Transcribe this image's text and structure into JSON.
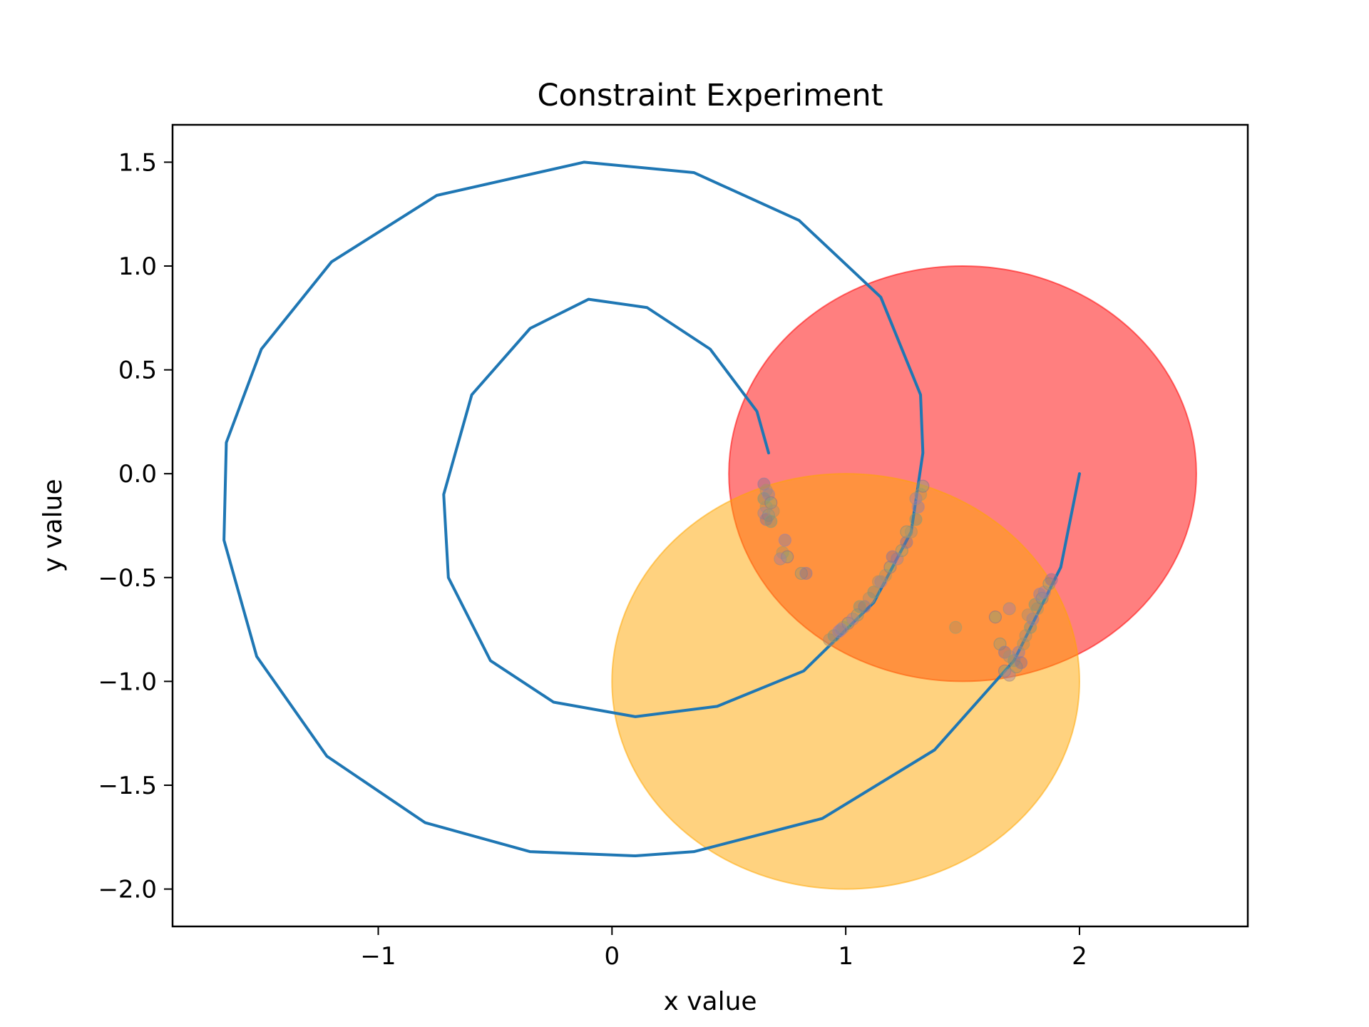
{
  "chart_data": {
    "type": "scatter",
    "title": "Constraint Experiment",
    "xlabel": "x value",
    "ylabel": "y value",
    "xlim": [
      -1.88,
      2.72
    ],
    "ylim": [
      -2.18,
      1.68
    ],
    "xticks": [
      {
        "value": -1,
        "label": "−1"
      },
      {
        "value": 0,
        "label": "0"
      },
      {
        "value": 1,
        "label": "1"
      },
      {
        "value": 2,
        "label": "2"
      }
    ],
    "yticks": [
      {
        "value": 1.5,
        "label": "1.5"
      },
      {
        "value": 1.0,
        "label": "1.0"
      },
      {
        "value": 0.5,
        "label": "0.5"
      },
      {
        "value": 0.0,
        "label": "0.0"
      },
      {
        "value": -0.5,
        "label": "−0.5"
      },
      {
        "value": -1.0,
        "label": "−1.0"
      },
      {
        "value": -1.5,
        "label": "−1.5"
      },
      {
        "value": -2.0,
        "label": "−2.0"
      }
    ],
    "grid": false,
    "legend": "none",
    "regions": [
      {
        "center": [
          1.5,
          0.0
        ],
        "radius": [
          1.0,
          1.0
        ],
        "fill": "#ff0000",
        "fill_opacity": 0.5
      },
      {
        "center": [
          1.0,
          -1.0
        ],
        "radius": [
          1.0,
          1.0
        ],
        "fill": "#ffa500",
        "fill_opacity": 0.5
      }
    ],
    "spiral": {
      "color": "#1f77b4",
      "start": [
        2.0,
        0.0
      ],
      "end": [
        0.67,
        0.1
      ],
      "points": [
        [
          2.0,
          0.0
        ],
        [
          1.92,
          -0.45
        ],
        [
          1.72,
          -0.9
        ],
        [
          1.38,
          -1.33
        ],
        [
          0.9,
          -1.66
        ],
        [
          0.35,
          -1.82
        ],
        [
          0.1,
          -1.84
        ],
        [
          -0.35,
          -1.82
        ],
        [
          -0.8,
          -1.68
        ],
        [
          -1.22,
          -1.36
        ],
        [
          -1.52,
          -0.88
        ],
        [
          -1.66,
          -0.32
        ],
        [
          -1.65,
          0.15
        ],
        [
          -1.5,
          0.6
        ],
        [
          -1.2,
          1.02
        ],
        [
          -0.75,
          1.34
        ],
        [
          -0.12,
          1.5
        ],
        [
          0.35,
          1.45
        ],
        [
          0.8,
          1.22
        ],
        [
          1.15,
          0.85
        ],
        [
          1.32,
          0.38
        ],
        [
          1.33,
          0.1
        ],
        [
          1.28,
          -0.28
        ],
        [
          1.12,
          -0.62
        ],
        [
          0.82,
          -0.95
        ],
        [
          0.45,
          -1.12
        ],
        [
          0.1,
          -1.17
        ],
        [
          -0.25,
          -1.1
        ],
        [
          -0.52,
          -0.9
        ],
        [
          -0.7,
          -0.5
        ],
        [
          -0.72,
          -0.1
        ],
        [
          -0.6,
          0.38
        ],
        [
          -0.35,
          0.7
        ],
        [
          -0.1,
          0.84
        ],
        [
          0.15,
          0.8
        ],
        [
          0.42,
          0.6
        ],
        [
          0.62,
          0.3
        ],
        [
          0.67,
          0.1
        ]
      ]
    },
    "scatter_points": [
      [
        0.65,
        -0.05
      ],
      [
        0.66,
        -0.08
      ],
      [
        0.65,
        -0.12
      ],
      [
        0.67,
        -0.1
      ],
      [
        0.66,
        -0.16
      ],
      [
        0.68,
        -0.14
      ],
      [
        0.65,
        -0.19
      ],
      [
        0.67,
        -0.2
      ],
      [
        0.66,
        -0.22
      ],
      [
        0.69,
        -0.18
      ],
      [
        0.68,
        -0.23
      ],
      [
        0.74,
        -0.32
      ],
      [
        0.73,
        -0.38
      ],
      [
        0.75,
        -0.4
      ],
      [
        0.72,
        -0.41
      ],
      [
        0.81,
        -0.48
      ],
      [
        0.83,
        -0.48
      ],
      [
        0.93,
        -0.8
      ],
      [
        0.95,
        -0.78
      ],
      [
        0.97,
        -0.76
      ],
      [
        0.99,
        -0.74
      ],
      [
        1.01,
        -0.72
      ],
      [
        1.03,
        -0.7
      ],
      [
        1.05,
        -0.68
      ],
      [
        1.08,
        -0.64
      ],
      [
        1.1,
        -0.6
      ],
      [
        1.12,
        -0.57
      ],
      [
        1.15,
        -0.52
      ],
      [
        1.17,
        -0.49
      ],
      [
        1.19,
        -0.45
      ],
      [
        1.22,
        -0.41
      ],
      [
        1.24,
        -0.37
      ],
      [
        1.26,
        -0.33
      ],
      [
        1.28,
        -0.28
      ],
      [
        1.3,
        -0.22
      ],
      [
        1.31,
        -0.16
      ],
      [
        1.32,
        -0.1
      ],
      [
        1.33,
        -0.06
      ],
      [
        1.3,
        -0.12
      ],
      [
        1.26,
        -0.28
      ],
      [
        1.2,
        -0.4
      ],
      [
        1.14,
        -0.52
      ],
      [
        1.06,
        -0.64
      ],
      [
        0.98,
        -0.75
      ],
      [
        1.47,
        -0.74
      ],
      [
        1.64,
        -0.69
      ],
      [
        1.7,
        -0.65
      ],
      [
        1.66,
        -0.82
      ],
      [
        1.68,
        -0.86
      ],
      [
        1.7,
        -0.88
      ],
      [
        1.72,
        -0.9
      ],
      [
        1.74,
        -0.86
      ],
      [
        1.76,
        -0.82
      ],
      [
        1.68,
        -0.95
      ],
      [
        1.7,
        -0.97
      ],
      [
        1.73,
        -0.93
      ],
      [
        1.75,
        -0.91
      ],
      [
        1.77,
        -0.78
      ],
      [
        1.79,
        -0.74
      ],
      [
        1.8,
        -0.7
      ],
      [
        1.82,
        -0.65
      ],
      [
        1.84,
        -0.6
      ],
      [
        1.85,
        -0.57
      ],
      [
        1.87,
        -0.53
      ],
      [
        1.88,
        -0.51
      ],
      [
        1.78,
        -0.68
      ],
      [
        1.81,
        -0.63
      ],
      [
        1.83,
        -0.58
      ]
    ],
    "scatter_colors": [
      "#8c6d8c",
      "#9f8f7a",
      "#7f8c7d",
      "#8a7fa1",
      "#b08f5f",
      "#7fa07a",
      "#a07fa5",
      "#9c9c6f"
    ]
  }
}
